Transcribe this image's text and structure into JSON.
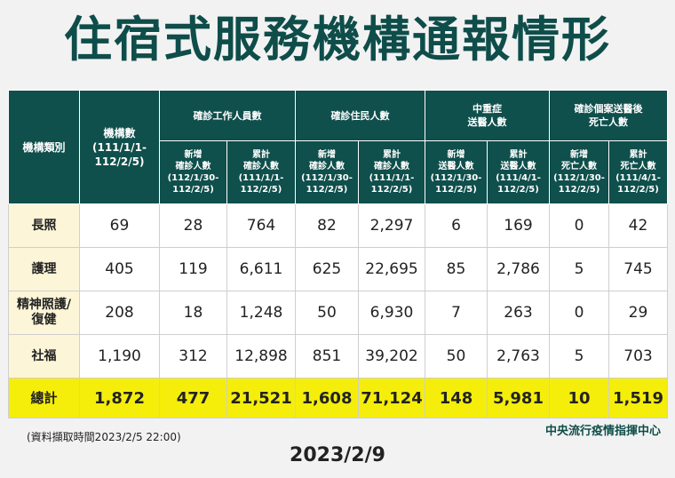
{
  "title": "住宿式服務機構通報情形",
  "header": {
    "category": "機構類別",
    "count_label": "機構數",
    "count_date": "(111/1/1-",
    "count_date2": "112/2/5)",
    "groups": {
      "staff": "確診工作人員數",
      "residents": "確診住民人數",
      "severe": "中重症\n送醫人數",
      "death": "確診個案送醫後\n死亡人數"
    },
    "sub": {
      "staff_new": "新增\n確診人數\n(112/1/30-\n112/2/5)",
      "staff_total": "累計\n確診人數\n(111/1/1-\n112/2/5)",
      "res_new": "新增\n確診人數\n(112/1/30-\n112/2/5)",
      "res_total": "累計\n確診人數\n(111/1/1-\n112/2/5)",
      "sev_new": "新增\n送醫人數\n(112/1/30-\n112/2/5)",
      "sev_total": "累計\n送醫人數\n(111/4/1-\n112/2/5)",
      "death_new": "新增\n死亡人數\n(112/1/30-\n112/2/5)",
      "death_total": "累計\n死亡人數\n(111/4/1-\n112/2/5)"
    }
  },
  "rows": [
    {
      "cat": "長照",
      "v": [
        "69",
        "28",
        "764",
        "82",
        "2,297",
        "6",
        "169",
        "0",
        "42"
      ]
    },
    {
      "cat": "護理",
      "v": [
        "405",
        "119",
        "6,611",
        "625",
        "22,695",
        "85",
        "2,786",
        "5",
        "745"
      ]
    },
    {
      "cat": "精神照護/\n復健",
      "v": [
        "208",
        "18",
        "1,248",
        "50",
        "6,930",
        "7",
        "263",
        "0",
        "29"
      ]
    },
    {
      "cat": "社福",
      "v": [
        "1,190",
        "312",
        "12,898",
        "851",
        "39,202",
        "50",
        "2,763",
        "5",
        "703"
      ]
    }
  ],
  "total": {
    "cat": "總計",
    "v": [
      "1,872",
      "477",
      "21,521",
      "1,608",
      "71,124",
      "148",
      "5,981",
      "10",
      "1,519"
    ]
  },
  "note": "(資料擷取時間2023/2/5  22:00)",
  "source": "中央流行疫情指揮中心",
  "date": "2023/2/9"
}
